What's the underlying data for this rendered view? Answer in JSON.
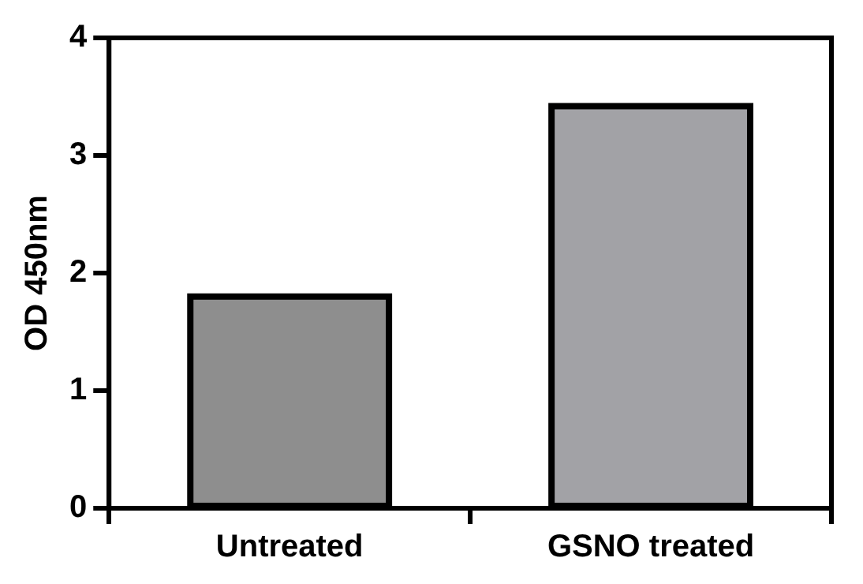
{
  "chart_data": {
    "type": "bar",
    "ylabel": "OD 450nm",
    "categories": [
      "Untreated",
      "GSNO treated"
    ],
    "values": [
      1.8,
      3.42
    ],
    "colors": [
      "#8e8e8e",
      "#a2a2a6"
    ],
    "ylim": [
      0,
      4
    ],
    "yticks": [
      0,
      1,
      2,
      3,
      4
    ],
    "grid": false
  }
}
